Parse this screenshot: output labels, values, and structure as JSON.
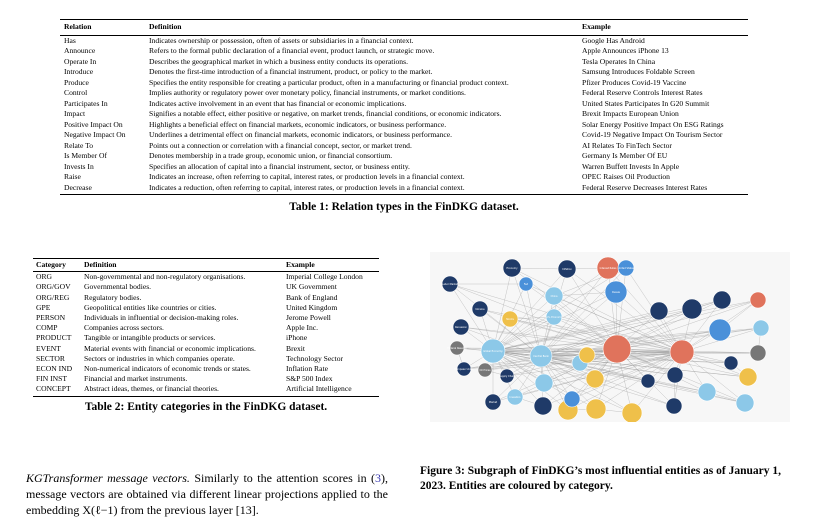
{
  "table1": {
    "headers": [
      "Relation",
      "Definition",
      "Example"
    ],
    "rows": [
      [
        "Has",
        "Indicates ownership or possession, often of assets or subsidiaries in a financial context.",
        "Google Has Android"
      ],
      [
        "Announce",
        "Refers to the formal public declaration of a financial event, product launch, or strategic move.",
        "Apple Announces iPhone 13"
      ],
      [
        "Operate In",
        "Describes the geographical market in which a business entity conducts its operations.",
        "Tesla Operates In China"
      ],
      [
        "Introduce",
        "Denotes the first-time introduction of a financial instrument, product, or policy to the market.",
        "Samsung Introduces Foldable Screen"
      ],
      [
        "Produce",
        "Specifies the entity responsible for creating a particular product, often in a manufacturing or financial product context.",
        "Pfizer Produces Covid-19 Vaccine"
      ],
      [
        "Control",
        "Implies authority or regulatory power over monetary policy, financial instruments, or market conditions.",
        "Federal Reserve Controls Interest Rates"
      ],
      [
        "Participates In",
        "Indicates active involvement in an event that has financial or economic implications.",
        "United States Participates In G20 Summit"
      ],
      [
        "Impact",
        "Signifies a notable effect, either positive or negative, on market trends, financial conditions, or economic indicators.",
        "Brexit Impacts European Union"
      ],
      [
        "Positive Impact On",
        "Highlights a beneficial effect on financial markets, economic indicators, or business performance.",
        "Solar Energy Positive Impact On ESG Ratings"
      ],
      [
        "Negative Impact On",
        "Underlines a detrimental effect on financial markets, economic indicators, or business performance.",
        "Covid-19 Negative Impact On Tourism Sector"
      ],
      [
        "Relate To",
        "Points out a connection or correlation with a financial concept, sector, or market trend.",
        "AI Relates To FinTech Sector"
      ],
      [
        "Is Member Of",
        "Denotes membership in a trade group, economic union, or financial consortium.",
        "Germany Is Member Of EU"
      ],
      [
        "Invests In",
        "Specifies an allocation of capital into a financial instrument, sector, or business entity.",
        "Warren Buffett Invests In Apple"
      ],
      [
        "Raise",
        "Indicates an increase, often referring to capital, interest rates, or production levels in a financial context.",
        "OPEC Raises Oil Production"
      ],
      [
        "Decrease",
        "Indicates a reduction, often referring to capital, interest rates, or production levels in a financial context.",
        "Federal Reserve Decreases Interest Rates"
      ]
    ],
    "caption": "Table 1: Relation types in the FinDKG dataset."
  },
  "table2": {
    "headers": [
      "Category",
      "Definition",
      "Example"
    ],
    "rows": [
      [
        "ORG",
        "Non-governmental and non-regulatory organisations.",
        "Imperial College London"
      ],
      [
        "ORG/GOV",
        "Governmental bodies.",
        "UK Government"
      ],
      [
        "ORG/REG",
        "Regulatory bodies.",
        "Bank of England"
      ],
      [
        "GPE",
        "Geopolitical entities like countries or cities.",
        "United Kingdom"
      ],
      [
        "PERSON",
        "Individuals in influential or decision-making roles.",
        "Jerome Powell"
      ],
      [
        "COMP",
        "Companies across sectors.",
        "Apple Inc."
      ],
      [
        "PRODUCT",
        "Tangible or intangible products or services.",
        "iPhone"
      ],
      [
        "EVENT",
        "Material events with financial or economic implications.",
        "Brexit"
      ],
      [
        "SECTOR",
        "Sectors or industries in which companies operate.",
        "Technology Sector"
      ],
      [
        "ECON IND",
        "Non-numerical indicators of economic trends or states.",
        "Inflation Rate"
      ],
      [
        "FIN INST",
        "Financial and market instruments.",
        "S&P 500 Index"
      ],
      [
        "CONCEPT",
        "Abstract ideas, themes, or financial theories.",
        "Artificial Intelligence"
      ]
    ],
    "caption": "Table 2: Entity categories in the FinDKG dataset."
  },
  "figure": {
    "caption": "Figure 3: Subgraph of FinDKG’s most influential entities as of January 1, 2023. Entities are coloured by category.",
    "colors": {
      "navy": "#1f3a68",
      "blue": "#4a90d9",
      "light_blue": "#8cc8e8",
      "red": "#e0735c",
      "yellow": "#efc04a",
      "gray": "#777777",
      "edge": "#9a9a9a"
    },
    "node_labels": [
      "Labor Market",
      "Economy",
      "Fed",
      "Inflation",
      "Interest Rates",
      "United States",
      "China",
      "Russia",
      "Ukraine",
      "Stocks",
      "U.S. Economy",
      "Recession",
      "Global Economy",
      "Central Bank",
      "Federal Reserve",
      "European Union",
      "Oil Prices",
      "Supply Chain",
      "Market",
      "Investors"
    ]
  },
  "paragraph": {
    "heading": "KGTransformer message vectors.",
    "text_before_ref": " Similarly to the attention scores in (",
    "ref": "3",
    "text_after_ref": "), message vectors are obtained via different linear projections applied to the embedding X(ℓ−1) from the previous layer [13]."
  }
}
